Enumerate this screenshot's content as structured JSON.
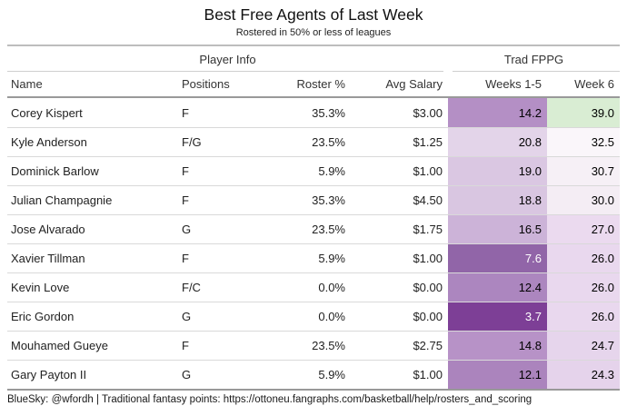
{
  "header": {
    "title": "Best Free Agents of Last Week",
    "subtitle": "Rostered in 50% or less of leagues"
  },
  "table": {
    "spanners": [
      {
        "label": "Player Info"
      },
      {
        "label": "Trad FPPG"
      }
    ],
    "columns": [
      "Name",
      "Positions",
      "Roster %",
      "Avg Salary",
      "Weeks 1-5",
      "Week 6"
    ],
    "rows": [
      {
        "name": "Corey Kispert",
        "positions": "F",
        "roster_pct": "35.3%",
        "avg_salary": "$3.00",
        "weeks_1_5": {
          "value": "14.2",
          "bg": "#b48fc5",
          "fg": "#000000"
        },
        "week_6": {
          "value": "39.0",
          "bg": "#d9edd3",
          "fg": "#000000"
        }
      },
      {
        "name": "Kyle Anderson",
        "positions": "F/G",
        "roster_pct": "23.5%",
        "avg_salary": "$1.25",
        "weeks_1_5": {
          "value": "20.8",
          "bg": "#e3d4e9",
          "fg": "#000000"
        },
        "week_6": {
          "value": "32.5",
          "bg": "#faf6fa",
          "fg": "#000000"
        }
      },
      {
        "name": "Dominick Barlow",
        "positions": "F",
        "roster_pct": "5.9%",
        "avg_salary": "$1.00",
        "weeks_1_5": {
          "value": "19.0",
          "bg": "#dac7e2",
          "fg": "#000000"
        },
        "week_6": {
          "value": "30.7",
          "bg": "#f6f0f6",
          "fg": "#000000"
        }
      },
      {
        "name": "Julian Champagnie",
        "positions": "F",
        "roster_pct": "35.3%",
        "avg_salary": "$4.50",
        "weeks_1_5": {
          "value": "18.8",
          "bg": "#d9c6e1",
          "fg": "#000000"
        },
        "week_6": {
          "value": "30.0",
          "bg": "#f4edf4",
          "fg": "#000000"
        }
      },
      {
        "name": "Jose Alvarado",
        "positions": "G",
        "roster_pct": "23.5%",
        "avg_salary": "$1.75",
        "weeks_1_5": {
          "value": "16.5",
          "bg": "#ccb3d8",
          "fg": "#000000"
        },
        "week_6": {
          "value": "27.0",
          "bg": "#ebdaef",
          "fg": "#000000"
        }
      },
      {
        "name": "Xavier Tillman",
        "positions": "F",
        "roster_pct": "5.9%",
        "avg_salary": "$1.00",
        "weeks_1_5": {
          "value": "7.6",
          "bg": "#9165a8",
          "fg": "#ffffff"
        },
        "week_6": {
          "value": "26.0",
          "bg": "#e9d8ee",
          "fg": "#000000"
        }
      },
      {
        "name": "Kevin Love",
        "positions": "F/C",
        "roster_pct": "0.0%",
        "avg_salary": "$0.00",
        "weeks_1_5": {
          "value": "12.4",
          "bg": "#ac86bf",
          "fg": "#000000"
        },
        "week_6": {
          "value": "26.0",
          "bg": "#e9d8ee",
          "fg": "#000000"
        }
      },
      {
        "name": "Eric Gordon",
        "positions": "G",
        "roster_pct": "0.0%",
        "avg_salary": "$0.00",
        "weeks_1_5": {
          "value": "3.7",
          "bg": "#7d3f96",
          "fg": "#ffffff"
        },
        "week_6": {
          "value": "26.0",
          "bg": "#e9d8ee",
          "fg": "#000000"
        }
      },
      {
        "name": "Mouhamed Gueye",
        "positions": "F",
        "roster_pct": "23.5%",
        "avg_salary": "$2.75",
        "weeks_1_5": {
          "value": "14.8",
          "bg": "#b792c7",
          "fg": "#000000"
        },
        "week_6": {
          "value": "24.7",
          "bg": "#e6d5ec",
          "fg": "#000000"
        }
      },
      {
        "name": "Gary Payton II",
        "positions": "G",
        "roster_pct": "5.9%",
        "avg_salary": "$1.00",
        "weeks_1_5": {
          "value": "12.1",
          "bg": "#ab84bd",
          "fg": "#000000"
        },
        "week_6": {
          "value": "24.3",
          "bg": "#e5d3eb",
          "fg": "#000000"
        }
      }
    ]
  },
  "footer": {
    "source_note": "BlueSky: @wfordh | Traditional fantasy points: https://ottoneu.fangraphs.com/basketball/help/rosters_and_scoring"
  },
  "colors": {
    "heatmap_low_purple": "#7d3f96",
    "heatmap_high_green": "#d9edd3",
    "header_rule": "#999999",
    "row_rule": "#d9d9d9"
  },
  "chart_data": {
    "type": "table",
    "title": "Best Free Agents of Last Week",
    "subtitle": "Rostered in 50% or less of leagues",
    "column_groups": [
      {
        "label": "Player Info",
        "columns": [
          "Name",
          "Positions",
          "Roster %",
          "Avg Salary"
        ]
      },
      {
        "label": "Trad FPPG",
        "columns": [
          "Weeks 1-5",
          "Week 6"
        ]
      }
    ],
    "columns": [
      "Name",
      "Positions",
      "Roster %",
      "Avg Salary",
      "Weeks 1-5",
      "Week 6"
    ],
    "rows": [
      [
        "Corey Kispert",
        "F",
        "35.3%",
        "$3.00",
        14.2,
        39.0
      ],
      [
        "Kyle Anderson",
        "F/G",
        "23.5%",
        "$1.25",
        20.8,
        32.5
      ],
      [
        "Dominick Barlow",
        "F",
        "5.9%",
        "$1.00",
        19.0,
        30.7
      ],
      [
        "Julian Champagnie",
        "F",
        "35.3%",
        "$4.50",
        18.8,
        30.0
      ],
      [
        "Jose Alvarado",
        "G",
        "23.5%",
        "$1.75",
        16.5,
        27.0
      ],
      [
        "Xavier Tillman",
        "F",
        "5.9%",
        "$1.00",
        7.6,
        26.0
      ],
      [
        "Kevin Love",
        "F/C",
        "0.0%",
        "$0.00",
        12.4,
        26.0
      ],
      [
        "Eric Gordon",
        "G",
        "0.0%",
        "$0.00",
        3.7,
        26.0
      ],
      [
        "Mouhamed Gueye",
        "F",
        "23.5%",
        "$2.75",
        14.8,
        24.7
      ],
      [
        "Gary Payton II",
        "G",
        "5.9%",
        "$1.00",
        12.1,
        24.3
      ]
    ],
    "heatmap_note": "FPPG cells shaded: dark purple = low value, white = mid, light green = high",
    "source_note": "BlueSky: @wfordh | Traditional fantasy points: https://ottoneu.fangraphs.com/basketball/help/rosters_and_scoring"
  }
}
